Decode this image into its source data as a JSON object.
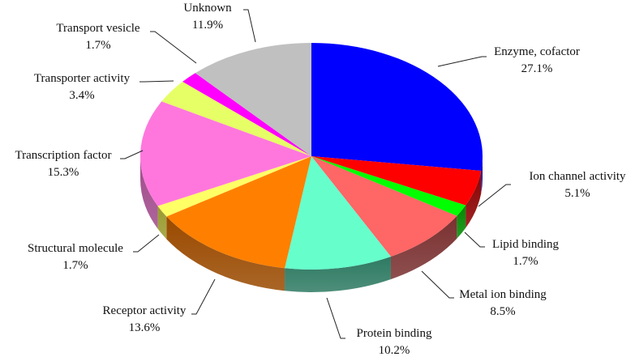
{
  "chart_data": {
    "type": "pie",
    "title": "",
    "slices": [
      {
        "label": "Enzyme, cofactor",
        "value": 27.1,
        "value_label": "27.1%",
        "color": "#0000ff",
        "side": "#00009a"
      },
      {
        "label": "Ion channel activity",
        "value": 5.1,
        "value_label": "5.1%",
        "color": "#ff0000",
        "side": "#8a0000"
      },
      {
        "label": "Lipid binding",
        "value": 1.7,
        "value_label": "1.7%",
        "color": "#00ff00",
        "side": "#008a00"
      },
      {
        "label": "Metal ion binding",
        "value": 8.5,
        "value_label": "8.5%",
        "color": "#ff6666",
        "side": "#7a3030"
      },
      {
        "label": "Protein binding",
        "value": 10.2,
        "value_label": "10.2%",
        "color": "#66ffcc",
        "side": "#2e7a62"
      },
      {
        "label": "Receptor activity",
        "value": 13.6,
        "value_label": "13.6%",
        "color": "#ff8000",
        "side": "#9a4a00"
      },
      {
        "label": "Structural molecule",
        "value": 1.7,
        "value_label": "1.7%",
        "color": "#ffff66",
        "side": "#9a9a30"
      },
      {
        "label": "Transcription factor",
        "value": 15.3,
        "value_label": "15.3%",
        "color": "#ff77dd",
        "side": "#a04a8a"
      },
      {
        "label": "Transporter activity",
        "value": 3.4,
        "value_label": "3.4%",
        "color": "#e6ff66",
        "side": "#8a9a3a"
      },
      {
        "label": "Transport vesicle",
        "value": 1.7,
        "value_label": "1.7%",
        "color": "#ff00ff",
        "side": "#9a009a"
      },
      {
        "label": "Unknown",
        "value": 11.9,
        "value_label": "11.9%",
        "color": "#c0c0c0",
        "side": "#707070"
      }
    ]
  }
}
